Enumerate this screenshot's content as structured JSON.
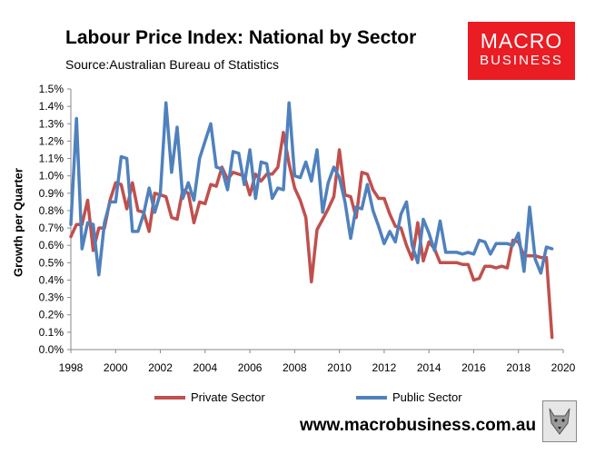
{
  "header": {
    "title": "Labour Price Index: National by Sector",
    "source": "Source:Australian Bureau of Statistics"
  },
  "logo": {
    "line1": "MACRO",
    "line2": "BUSINESS"
  },
  "footer": {
    "website": "www.macrobusiness.com.au"
  },
  "chart_data": {
    "type": "line",
    "title": "Labour Price Index: National by Sector",
    "xlabel": "",
    "ylabel": "Growth per Quarter",
    "xlim": [
      1998,
      2020
    ],
    "ylim": [
      0.0,
      1.5
    ],
    "x_ticks": [
      1998,
      2000,
      2002,
      2004,
      2006,
      2008,
      2010,
      2012,
      2014,
      2016,
      2018,
      2020
    ],
    "y_ticks": [
      0.0,
      0.1,
      0.2,
      0.3,
      0.4,
      0.5,
      0.6,
      0.7,
      0.8,
      0.9,
      1.0,
      1.1,
      1.2,
      1.3,
      1.4,
      1.5
    ],
    "y_tick_labels": [
      "0.0%",
      "0.1%",
      "0.2%",
      "0.3%",
      "0.4%",
      "0.5%",
      "0.6%",
      "0.7%",
      "0.8%",
      "0.9%",
      "1.0%",
      "1.1%",
      "1.2%",
      "1.3%",
      "1.4%",
      "1.5%"
    ],
    "grid": false,
    "legend_position": "bottom",
    "series": [
      {
        "name": "Private Sector",
        "color": "#c0504d",
        "x": [
          1998.0,
          1998.25,
          1998.5,
          1998.75,
          1999.0,
          1999.25,
          1999.5,
          1999.75,
          2000.0,
          2000.25,
          2000.5,
          2000.75,
          2001.0,
          2001.25,
          2001.5,
          2001.75,
          2002.0,
          2002.25,
          2002.5,
          2002.75,
          2003.0,
          2003.25,
          2003.5,
          2003.75,
          2004.0,
          2004.25,
          2004.5,
          2004.75,
          2005.0,
          2005.25,
          2005.5,
          2005.75,
          2006.0,
          2006.25,
          2006.5,
          2006.75,
          2007.0,
          2007.25,
          2007.5,
          2007.75,
          2008.0,
          2008.25,
          2008.5,
          2008.75,
          2009.0,
          2009.25,
          2009.5,
          2009.75,
          2010.0,
          2010.25,
          2010.5,
          2010.75,
          2011.0,
          2011.25,
          2011.5,
          2011.75,
          2012.0,
          2012.25,
          2012.5,
          2012.75,
          2013.0,
          2013.25,
          2013.5,
          2013.75,
          2014.0,
          2014.25,
          2014.5,
          2014.75,
          2015.0,
          2015.25,
          2015.5,
          2015.75,
          2016.0,
          2016.25,
          2016.5,
          2016.75,
          2017.0,
          2017.25,
          2017.5,
          2017.75,
          2018.0,
          2018.25,
          2018.5,
          2018.75,
          2019.0,
          2019.25,
          2019.5
        ],
        "values": [
          0.65,
          0.72,
          0.72,
          0.86,
          0.57,
          0.7,
          0.7,
          0.86,
          0.96,
          0.95,
          0.81,
          0.96,
          0.8,
          0.79,
          0.68,
          0.9,
          0.89,
          0.88,
          0.76,
          0.75,
          0.92,
          0.9,
          0.73,
          0.85,
          0.84,
          0.95,
          0.94,
          1.05,
          0.98,
          1.02,
          1.01,
          1.0,
          0.89,
          1.01,
          0.97,
          1.01,
          1.01,
          1.05,
          1.25,
          1.07,
          0.93,
          0.86,
          0.76,
          0.39,
          0.69,
          0.75,
          0.81,
          0.88,
          1.15,
          0.89,
          0.88,
          0.76,
          1.02,
          1.01,
          0.92,
          0.87,
          0.87,
          0.78,
          0.71,
          0.7,
          0.6,
          0.52,
          0.73,
          0.51,
          0.62,
          0.58,
          0.5,
          0.5,
          0.5,
          0.5,
          0.49,
          0.49,
          0.4,
          0.41,
          0.48,
          0.48,
          0.47,
          0.48,
          0.47,
          0.63,
          0.62,
          0.54,
          0.54,
          0.54,
          0.53,
          0.53,
          0.07
        ]
      },
      {
        "name": "Public Sector",
        "color": "#4f81bd",
        "x": [
          1998.0,
          1998.25,
          1998.5,
          1998.75,
          1999.0,
          1999.25,
          1999.5,
          1999.75,
          2000.0,
          2000.25,
          2000.5,
          2000.75,
          2001.0,
          2001.25,
          2001.5,
          2001.75,
          2002.0,
          2002.25,
          2002.5,
          2002.75,
          2003.0,
          2003.25,
          2003.5,
          2003.75,
          2004.0,
          2004.25,
          2004.5,
          2004.75,
          2005.0,
          2005.25,
          2005.5,
          2005.75,
          2006.0,
          2006.25,
          2006.5,
          2006.75,
          2007.0,
          2007.25,
          2007.5,
          2007.75,
          2008.0,
          2008.25,
          2008.5,
          2008.75,
          2009.0,
          2009.25,
          2009.5,
          2009.75,
          2010.0,
          2010.25,
          2010.5,
          2010.75,
          2011.0,
          2011.25,
          2011.5,
          2011.75,
          2012.0,
          2012.25,
          2012.5,
          2012.75,
          2013.0,
          2013.25,
          2013.5,
          2013.75,
          2014.0,
          2014.25,
          2014.5,
          2014.75,
          2015.0,
          2015.25,
          2015.5,
          2015.75,
          2016.0,
          2016.25,
          2016.5,
          2016.75,
          2017.0,
          2017.25,
          2017.5,
          2017.75,
          2018.0,
          2018.25,
          2018.5,
          2018.75,
          2019.0,
          2019.25,
          2019.5
        ],
        "values": [
          0.72,
          1.33,
          0.58,
          0.73,
          0.72,
          0.43,
          0.73,
          0.85,
          0.85,
          1.11,
          1.1,
          0.68,
          0.68,
          0.78,
          0.93,
          0.79,
          0.9,
          1.42,
          1.02,
          1.28,
          0.87,
          0.96,
          0.86,
          1.1,
          1.2,
          1.3,
          1.05,
          1.04,
          0.92,
          1.14,
          1.13,
          0.95,
          1.15,
          0.87,
          1.08,
          1.07,
          0.87,
          0.93,
          0.92,
          1.42,
          1.0,
          0.99,
          1.08,
          0.97,
          1.15,
          0.79,
          0.96,
          1.05,
          0.99,
          0.85,
          0.64,
          0.82,
          0.81,
          0.95,
          0.8,
          0.71,
          0.61,
          0.68,
          0.62,
          0.78,
          0.85,
          0.6,
          0.5,
          0.75,
          0.67,
          0.57,
          0.74,
          0.56,
          0.56,
          0.56,
          0.55,
          0.56,
          0.55,
          0.63,
          0.62,
          0.55,
          0.61,
          0.61,
          0.61,
          0.6,
          0.67,
          0.45,
          0.82,
          0.52,
          0.44,
          0.59,
          0.58
        ]
      }
    ]
  }
}
